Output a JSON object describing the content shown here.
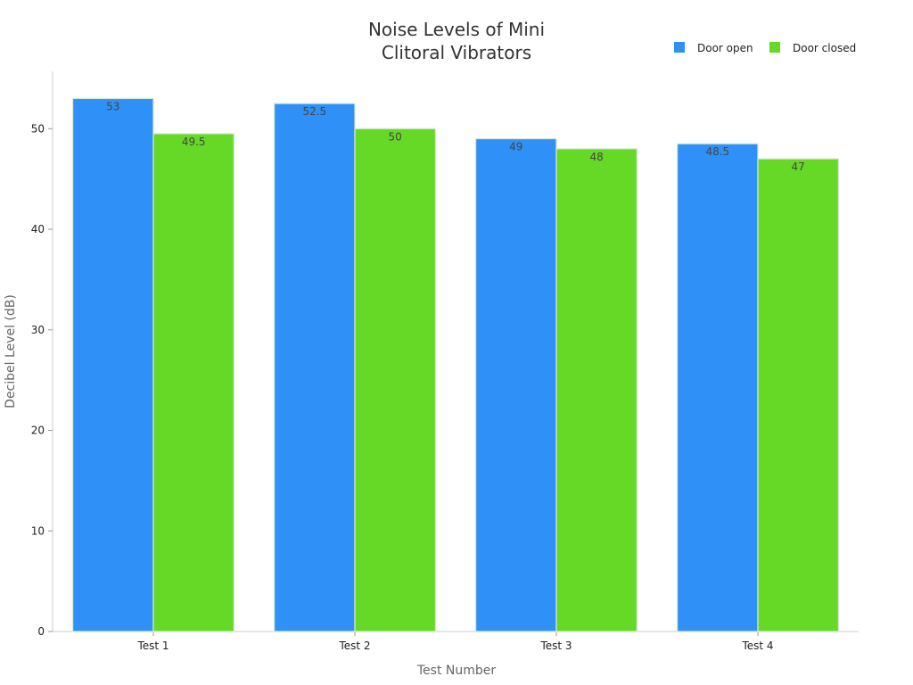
{
  "chart_data": {
    "type": "bar",
    "title_lines": [
      "Noise Levels of Mini",
      "Clitoral Vibrators"
    ],
    "xlabel": "Test Number",
    "ylabel": "Decibel Level (dB)",
    "categories": [
      "Test 1",
      "Test 2",
      "Test 3",
      "Test 4"
    ],
    "series": [
      {
        "name": "Door open",
        "values": [
          53,
          52.5,
          49,
          48.5
        ],
        "color": "#2f91f7"
      },
      {
        "name": "Door closed",
        "values": [
          49.5,
          50,
          48,
          47
        ],
        "color": "#66d926"
      }
    ],
    "ylim": [
      0,
      55.7
    ],
    "yticks": [
      0,
      10,
      20,
      30,
      40,
      50
    ],
    "grid": false,
    "legend_position": "top-right"
  }
}
